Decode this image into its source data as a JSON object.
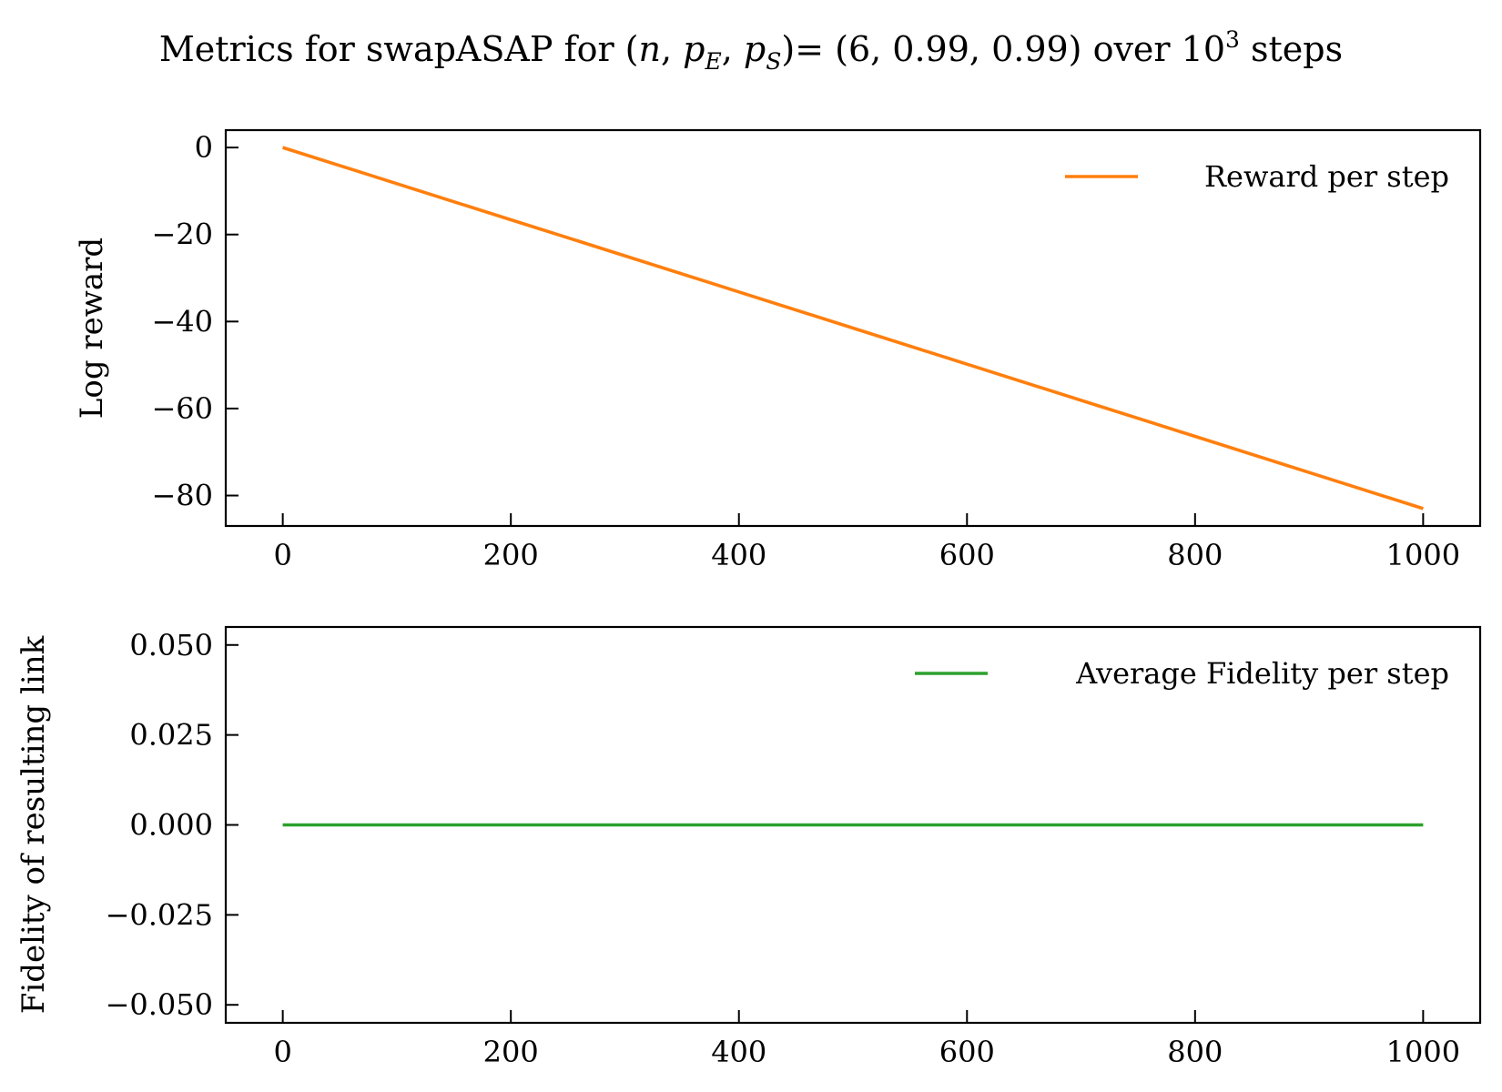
{
  "title": {
    "prefix": "Metrics for swapASAP for (",
    "var_n": "n",
    "sep1": ", ",
    "var_p1": "p",
    "sub1": "E",
    "sep2": ", ",
    "var_p2": "p",
    "sub2": "S",
    "mid": ")= (6, 0.99, 0.99) over 10",
    "sup": "3",
    "suffix": " steps"
  },
  "chart_data": [
    {
      "type": "line",
      "title": "",
      "xlabel": "",
      "ylabel": "Log reward",
      "xlim": [
        -50,
        1050
      ],
      "ylim": [
        -87,
        4
      ],
      "xticks": [
        0,
        200,
        400,
        600,
        800,
        1000
      ],
      "xtick_labels": [
        "0",
        "200",
        "400",
        "600",
        "800",
        "1000"
      ],
      "yticks": [
        0,
        -20,
        -40,
        -60,
        -80
      ],
      "ytick_labels": [
        "0",
        "−20",
        "−40",
        "−60",
        "−80"
      ],
      "grid": false,
      "legend_position": "top-right",
      "series": [
        {
          "name": "Reward per step",
          "color": "#ff7f0e",
          "x": [
            0,
            100,
            200,
            300,
            400,
            500,
            600,
            700,
            800,
            900,
            1000
          ],
          "values": [
            0,
            -8.3,
            -16.6,
            -24.9,
            -33.2,
            -41.5,
            -49.8,
            -58.1,
            -66.4,
            -74.7,
            -83
          ]
        }
      ]
    },
    {
      "type": "line",
      "title": "",
      "xlabel": "",
      "ylabel": "Fidelity of resulting link",
      "xlim": [
        -50,
        1050
      ],
      "ylim": [
        -0.055,
        0.055
      ],
      "xticks": [
        0,
        200,
        400,
        600,
        800,
        1000
      ],
      "xtick_labels": [
        "0",
        "200",
        "400",
        "600",
        "800",
        "1000"
      ],
      "yticks": [
        0.05,
        0.025,
        0.0,
        -0.025,
        -0.05
      ],
      "ytick_labels": [
        "0.050",
        "0.025",
        "0.000",
        "−0.025",
        "−0.050"
      ],
      "grid": false,
      "legend_position": "top-right",
      "series": [
        {
          "name": "Average Fidelity per step",
          "color": "#2ca02c",
          "x": [
            0,
            1000
          ],
          "values": [
            0,
            0
          ]
        }
      ]
    }
  ]
}
